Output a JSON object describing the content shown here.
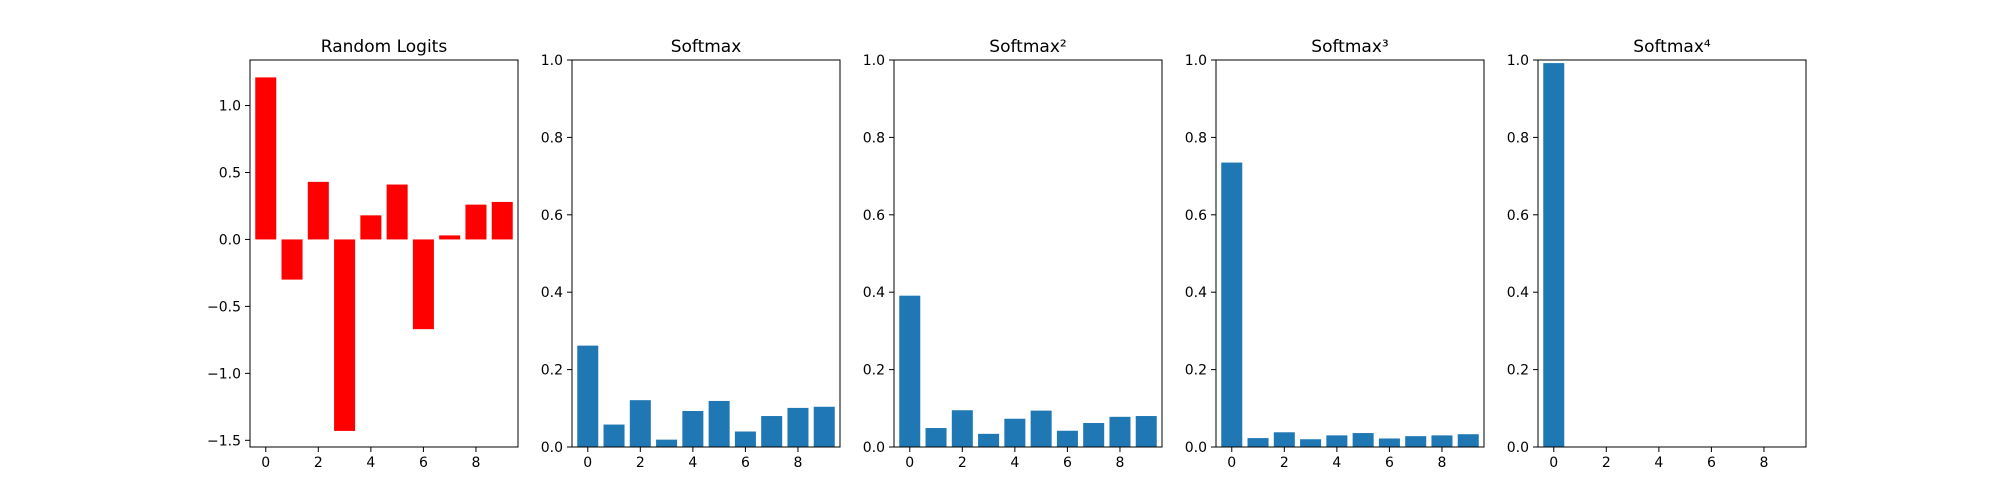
{
  "chart_data": [
    {
      "type": "bar",
      "title": "Random Logits",
      "x": [
        0,
        1,
        2,
        3,
        4,
        5,
        6,
        7,
        8,
        9
      ],
      "values": [
        1.21,
        -0.3,
        0.43,
        -1.43,
        0.18,
        0.41,
        -0.67,
        0.03,
        0.26,
        0.28
      ],
      "ylim": [
        -1.55,
        1.34
      ],
      "xlim": [
        -0.6,
        9.6
      ],
      "xticks": [
        0,
        2,
        4,
        6,
        8
      ],
      "yticks": [
        -1.5,
        -1.0,
        -0.5,
        0.0,
        0.5,
        1.0
      ],
      "ytick_labels": [
        "−1.5",
        "−1.0",
        "−0.5",
        "0.0",
        "0.5",
        "1.0"
      ],
      "color": "#ff0000",
      "grid": false
    },
    {
      "type": "bar",
      "title": "Softmax",
      "x": [
        0,
        1,
        2,
        3,
        4,
        5,
        6,
        7,
        8,
        9
      ],
      "values": [
        0.262,
        0.058,
        0.121,
        0.019,
        0.093,
        0.119,
        0.04,
        0.08,
        0.101,
        0.104
      ],
      "ylim": [
        0,
        1
      ],
      "xlim": [
        -0.6,
        9.6
      ],
      "xticks": [
        0,
        2,
        4,
        6,
        8
      ],
      "yticks": [
        0.0,
        0.2,
        0.4,
        0.6,
        0.8,
        1.0
      ],
      "ytick_labels": [
        "0.0",
        "0.2",
        "0.4",
        "0.6",
        "0.8",
        "1.0"
      ],
      "color": "#1f77b4",
      "grid": false
    },
    {
      "type": "bar",
      "title": "Softmax²",
      "x": [
        0,
        1,
        2,
        3,
        4,
        5,
        6,
        7,
        8,
        9
      ],
      "values": [
        0.391,
        0.049,
        0.095,
        0.034,
        0.073,
        0.094,
        0.042,
        0.062,
        0.078,
        0.08
      ],
      "ylim": [
        0,
        1
      ],
      "xlim": [
        -0.6,
        9.6
      ],
      "xticks": [
        0,
        2,
        4,
        6,
        8
      ],
      "yticks": [
        0.0,
        0.2,
        0.4,
        0.6,
        0.8,
        1.0
      ],
      "ytick_labels": [
        "0.0",
        "0.2",
        "0.4",
        "0.6",
        "0.8",
        "1.0"
      ],
      "color": "#1f77b4",
      "grid": false
    },
    {
      "type": "bar",
      "title": "Softmax³",
      "x": [
        0,
        1,
        2,
        3,
        4,
        5,
        6,
        7,
        8,
        9
      ],
      "values": [
        0.735,
        0.023,
        0.038,
        0.02,
        0.03,
        0.036,
        0.022,
        0.028,
        0.03,
        0.033
      ],
      "ylim": [
        0,
        1
      ],
      "xlim": [
        -0.6,
        9.6
      ],
      "xticks": [
        0,
        2,
        4,
        6,
        8
      ],
      "yticks": [
        0.0,
        0.2,
        0.4,
        0.6,
        0.8,
        1.0
      ],
      "ytick_labels": [
        "0.0",
        "0.2",
        "0.4",
        "0.6",
        "0.8",
        "1.0"
      ],
      "color": "#1f77b4",
      "grid": false
    },
    {
      "type": "bar",
      "title": "Softmax⁴",
      "x": [
        0,
        1,
        2,
        3,
        4,
        5,
        6,
        7,
        8,
        9
      ],
      "values": [
        0.992,
        0.001,
        0.001,
        0.001,
        0.001,
        0.001,
        0.001,
        0.001,
        0.001,
        0.001
      ],
      "ylim": [
        0,
        1
      ],
      "xlim": [
        -0.6,
        9.6
      ],
      "xticks": [
        0,
        2,
        4,
        6,
        8
      ],
      "yticks": [
        0.0,
        0.2,
        0.4,
        0.6,
        0.8,
        1.0
      ],
      "ytick_labels": [
        "0.0",
        "0.2",
        "0.4",
        "0.6",
        "0.8",
        "1.0"
      ],
      "color": "#1f77b4",
      "grid": false
    }
  ]
}
